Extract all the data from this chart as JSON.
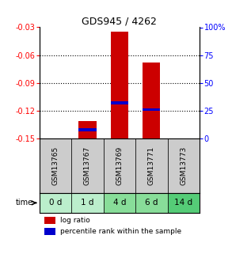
{
  "title": "GDS945 / 4262",
  "samples": [
    "GSM13765",
    "GSM13767",
    "GSM13769",
    "GSM13771",
    "GSM13773"
  ],
  "time_labels": [
    "0 d",
    "1 d",
    "4 d",
    "6 d",
    "14 d"
  ],
  "time_bg_colors": [
    "#bbeecc",
    "#bbeecc",
    "#88dd99",
    "#88dd99",
    "#55cc77"
  ],
  "log_ratios": [
    0.0,
    -0.131,
    -0.035,
    -0.068,
    0.0
  ],
  "percentile_ranks": [
    0.0,
    0.08,
    0.32,
    0.26,
    0.0
  ],
  "ylim_left": [
    -0.15,
    -0.03
  ],
  "yticks_left": [
    -0.15,
    -0.12,
    -0.09,
    -0.06,
    -0.03
  ],
  "ytick_labels_left": [
    "-0.15",
    "-0.12",
    "-0.09",
    "-0.06",
    "-0.03"
  ],
  "ylim_right": [
    0,
    100
  ],
  "yticks_right": [
    0,
    25,
    50,
    75,
    100
  ],
  "ytick_labels_right": [
    "0",
    "25",
    "50",
    "75",
    "100%"
  ],
  "bar_color": "#cc0000",
  "percentile_color": "#0000cc",
  "sample_bg_color": "#cccccc",
  "bar_width": 0.55,
  "legend_log_ratio": "log ratio",
  "legend_percentile": "percentile rank within the sample",
  "time_label": "time",
  "grid_lines": [
    -0.06,
    -0.09,
    -0.12
  ],
  "title_fontsize": 9,
  "tick_fontsize": 7,
  "sample_fontsize": 6.5,
  "time_fontsize": 7.5
}
